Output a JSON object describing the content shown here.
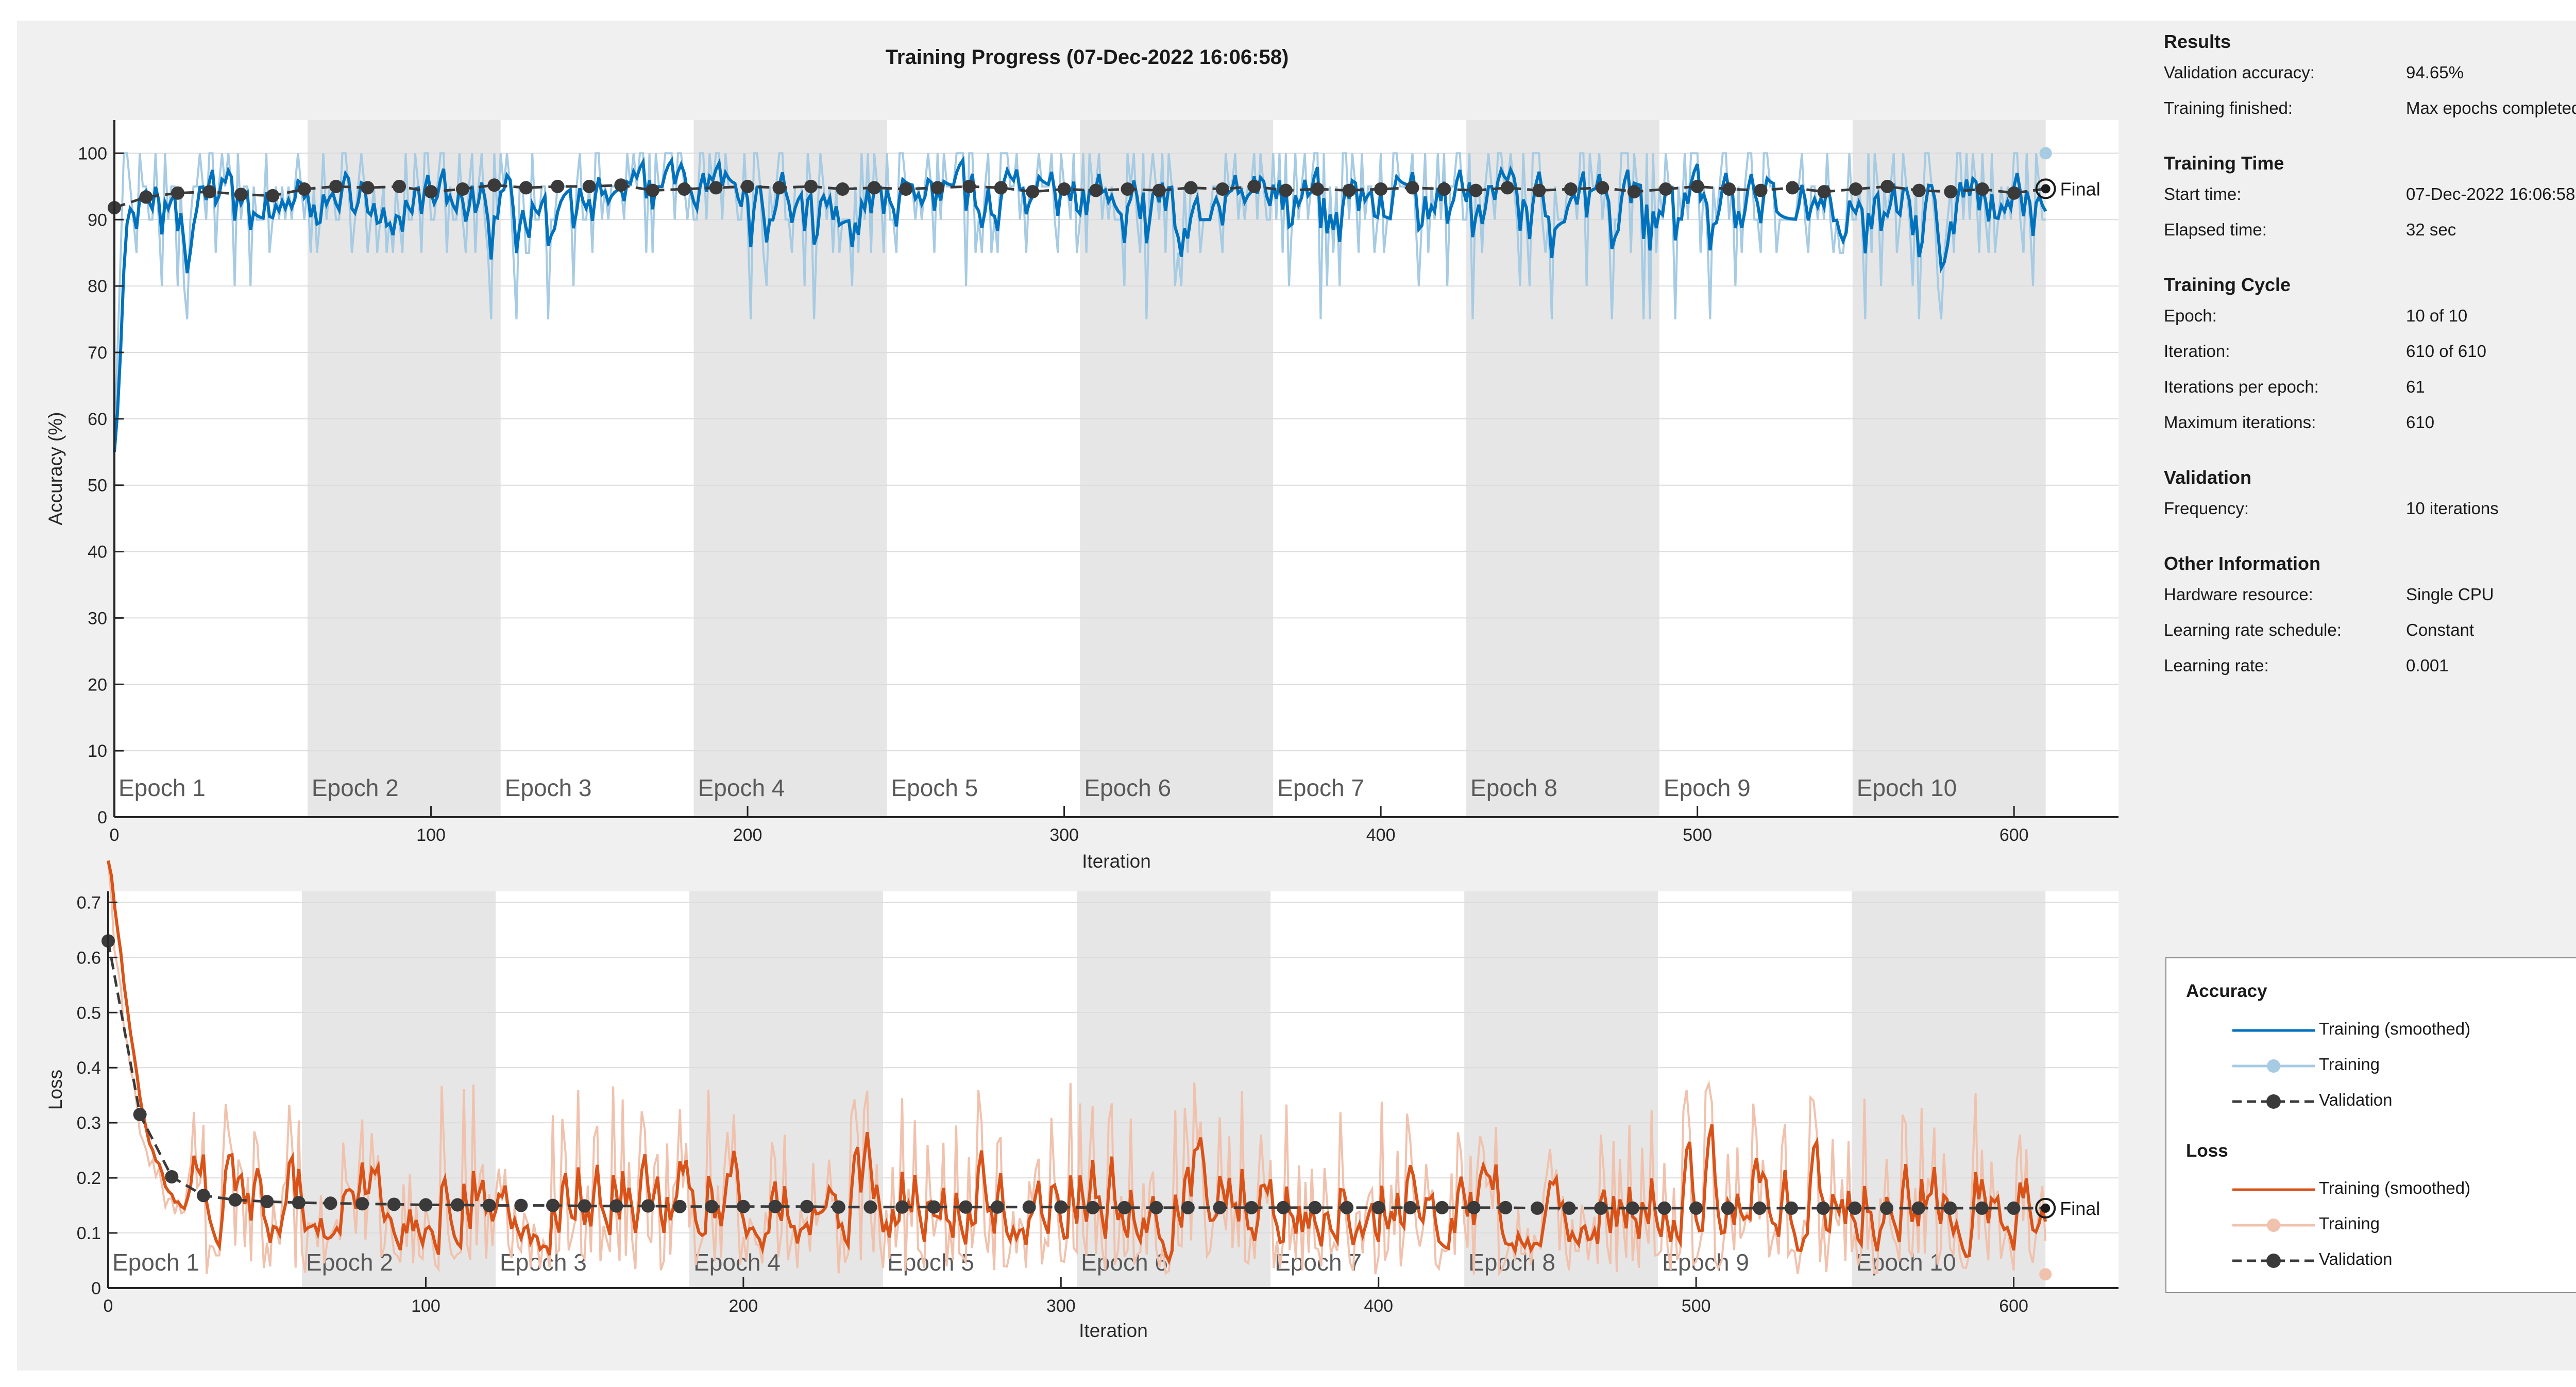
{
  "title": "Training Progress (07-Dec-2022 16:06:58)",
  "colors": {
    "acc_smoothed": "#0072bd",
    "acc_raw": "#a6cbe3",
    "loss_smoothed": "#d95319",
    "loss_raw": "#f0c2ad",
    "validation": "#3a3a3a",
    "epoch_shade": "#e6e6e6",
    "grid": "#dcdcdc"
  },
  "chart_data": [
    {
      "type": "line",
      "name": "accuracy",
      "xlabel": "Iteration",
      "ylabel": "Accuracy (%)",
      "xlim": [
        0,
        633
      ],
      "ylim": [
        0,
        105
      ],
      "xticks": [
        0,
        100,
        200,
        300,
        400,
        500,
        600
      ],
      "yticks": [
        0,
        10,
        20,
        30,
        40,
        50,
        60,
        70,
        80,
        90,
        100
      ],
      "epoch_labels": [
        "Epoch 1",
        "Epoch 2",
        "Epoch 3",
        "Epoch 4",
        "Epoch 5",
        "Epoch 6",
        "Epoch 7",
        "Epoch 8",
        "Epoch 9",
        "Epoch 10"
      ],
      "iterations_per_epoch": 61,
      "final_label": "Final",
      "final_validation": 94.65,
      "final_training": 100,
      "validation": {
        "x": [
          0,
          10,
          20,
          30,
          40,
          50,
          60,
          70,
          80,
          90,
          100,
          110,
          120,
          130,
          140,
          150,
          160,
          170,
          180,
          190,
          200,
          210,
          220,
          230,
          240,
          250,
          260,
          270,
          280,
          290,
          300,
          310,
          320,
          330,
          340,
          350,
          360,
          370,
          380,
          390,
          400,
          410,
          420,
          430,
          440,
          450,
          460,
          470,
          480,
          490,
          500,
          510,
          520,
          530,
          540,
          550,
          560,
          570,
          580,
          590,
          600,
          610
        ],
        "y": [
          91.8,
          93.4,
          94.0,
          94.2,
          93.8,
          93.6,
          94.6,
          95.0,
          94.8,
          95.0,
          94.2,
          94.6,
          95.2,
          94.8,
          95.0,
          95.0,
          95.2,
          94.4,
          94.6,
          94.8,
          95.0,
          94.8,
          95.0,
          94.6,
          94.8,
          94.6,
          94.8,
          95.0,
          94.8,
          94.2,
          94.6,
          94.4,
          94.6,
          94.4,
          94.8,
          94.6,
          95.0,
          94.4,
          94.6,
          94.4,
          94.6,
          94.8,
          94.6,
          94.4,
          94.8,
          94.4,
          94.6,
          94.8,
          94.2,
          94.6,
          95.0,
          94.6,
          94.4,
          94.8,
          94.2,
          94.6,
          95.0,
          94.4,
          94.2,
          94.6,
          94.0,
          94.65
        ]
      },
      "series": [
        {
          "name": "Training (smoothed)"
        },
        {
          "name": "Training"
        },
        {
          "name": "Validation"
        }
      ]
    },
    {
      "type": "line",
      "name": "loss",
      "xlabel": "Iteration",
      "ylabel": "Loss",
      "xlim": [
        0,
        633
      ],
      "ylim": [
        0,
        0.72
      ],
      "xticks": [
        0,
        100,
        200,
        300,
        400,
        500,
        600
      ],
      "yticks": [
        0,
        0.1,
        0.2,
        0.3,
        0.4,
        0.5,
        0.6,
        0.7
      ],
      "epoch_labels": [
        "Epoch 1",
        "Epoch 2",
        "Epoch 3",
        "Epoch 4",
        "Epoch 5",
        "Epoch 6",
        "Epoch 7",
        "Epoch 8",
        "Epoch 9",
        "Epoch 10"
      ],
      "iterations_per_epoch": 61,
      "final_label": "Final",
      "final_validation": 0.145,
      "final_training": 0.025,
      "validation": {
        "x": [
          0,
          10,
          20,
          30,
          40,
          50,
          60,
          70,
          80,
          90,
          100,
          110,
          120,
          130,
          140,
          150,
          160,
          170,
          180,
          190,
          200,
          210,
          220,
          230,
          240,
          250,
          260,
          270,
          280,
          290,
          300,
          310,
          320,
          330,
          340,
          350,
          360,
          370,
          380,
          390,
          400,
          410,
          420,
          430,
          440,
          450,
          460,
          470,
          480,
          490,
          500,
          510,
          520,
          530,
          540,
          550,
          560,
          570,
          580,
          590,
          600,
          610
        ],
        "y": [
          0.63,
          0.315,
          0.202,
          0.168,
          0.16,
          0.157,
          0.155,
          0.154,
          0.153,
          0.152,
          0.151,
          0.151,
          0.15,
          0.15,
          0.15,
          0.149,
          0.149,
          0.149,
          0.148,
          0.148,
          0.148,
          0.148,
          0.148,
          0.147,
          0.147,
          0.147,
          0.147,
          0.147,
          0.147,
          0.147,
          0.147,
          0.146,
          0.146,
          0.146,
          0.146,
          0.146,
          0.146,
          0.146,
          0.146,
          0.146,
          0.146,
          0.146,
          0.146,
          0.146,
          0.146,
          0.145,
          0.145,
          0.145,
          0.145,
          0.145,
          0.145,
          0.145,
          0.145,
          0.145,
          0.145,
          0.145,
          0.145,
          0.145,
          0.145,
          0.145,
          0.145,
          0.145
        ]
      },
      "series": [
        {
          "name": "Training (smoothed)"
        },
        {
          "name": "Training"
        },
        {
          "name": "Validation"
        }
      ]
    }
  ],
  "panel": {
    "results": {
      "title": "Results",
      "validation_accuracy_label": "Validation accuracy:",
      "validation_accuracy": "94.65%",
      "training_finished_label": "Training finished:",
      "training_finished": "Max epochs completed"
    },
    "time": {
      "title": "Training Time",
      "start_label": "Start time:",
      "start": "07-Dec-2022 16:06:58",
      "elapsed_label": "Elapsed time:",
      "elapsed": "32 sec"
    },
    "cycle": {
      "title": "Training Cycle",
      "epoch_label": "Epoch:",
      "epoch": "10 of 10",
      "iteration_label": "Iteration:",
      "iteration": "610 of 610",
      "ipe_label": "Iterations per epoch:",
      "ipe": "61",
      "max_label": "Maximum iterations:",
      "max": "610"
    },
    "validation": {
      "title": "Validation",
      "freq_label": "Frequency:",
      "freq": "10 iterations"
    },
    "other": {
      "title": "Other Information",
      "hw_label": "Hardware resource:",
      "hw": "Single CPU",
      "lrs_label": "Learning rate schedule:",
      "lrs": "Constant",
      "lr_label": "Learning rate:",
      "lr": "0.001"
    }
  },
  "legend": {
    "acc_title": "Accuracy",
    "acc_items": [
      "Training (smoothed)",
      "Training",
      "Validation"
    ],
    "loss_title": "Loss",
    "loss_items": [
      "Training (smoothed)",
      "Training",
      "Validation"
    ]
  }
}
